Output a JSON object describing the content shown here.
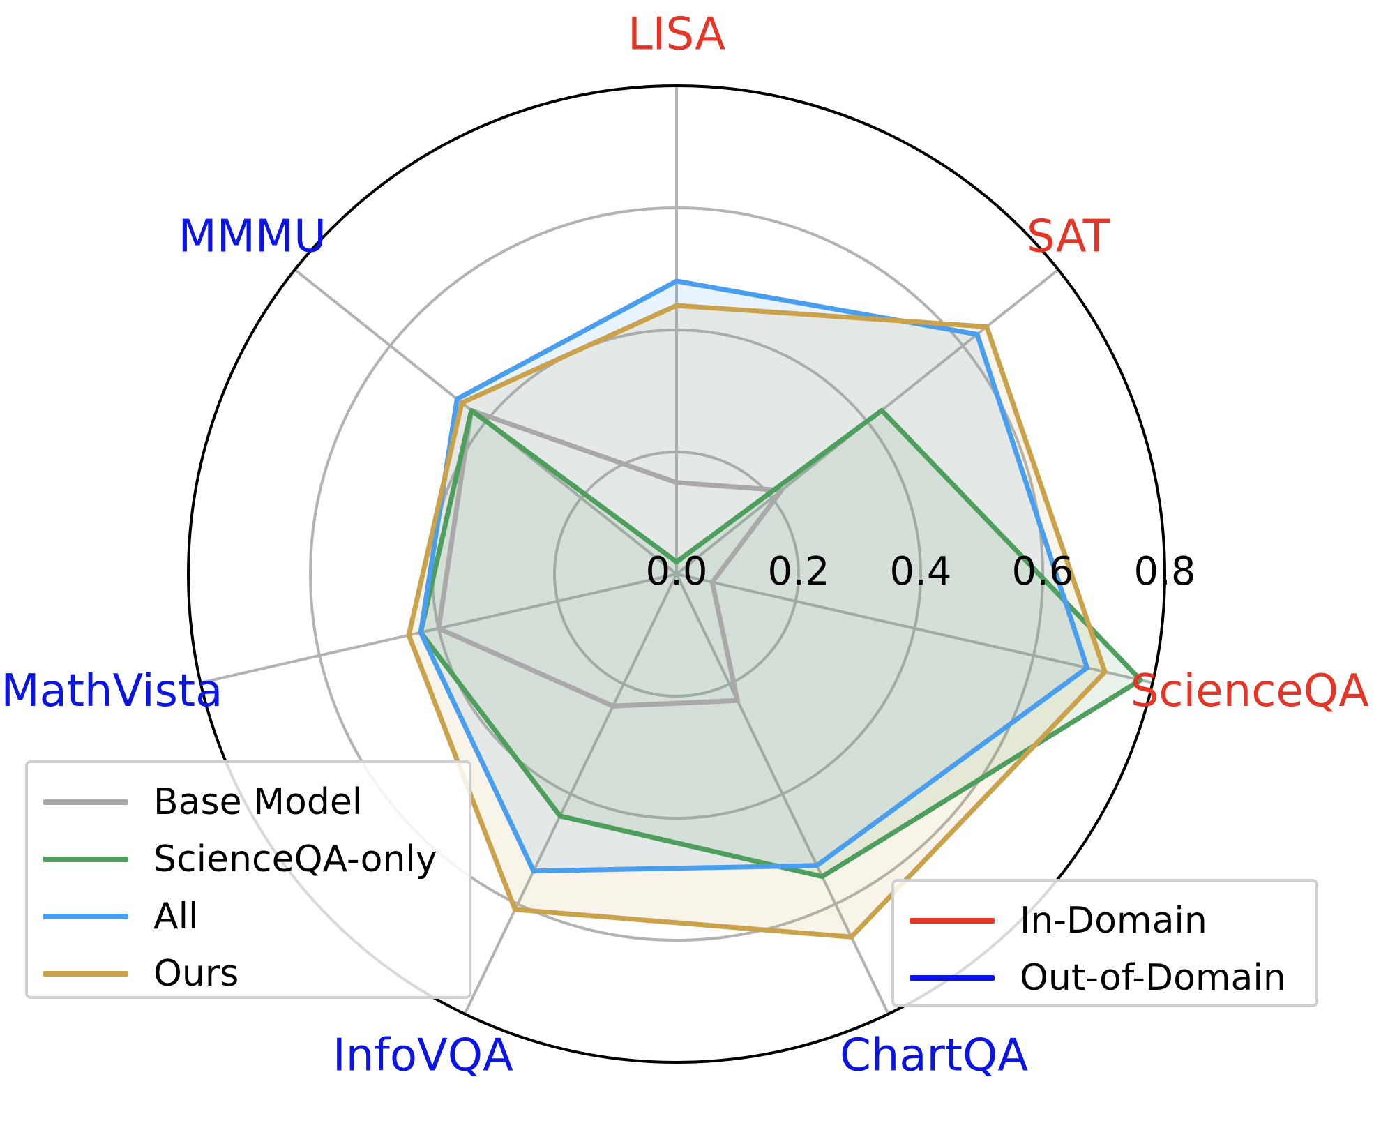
{
  "chart_data": {
    "type": "radar",
    "axes": [
      {
        "label": "LISA",
        "domain": "in"
      },
      {
        "label": "SAT",
        "domain": "in"
      },
      {
        "label": "ScienceQA",
        "domain": "in"
      },
      {
        "label": "ChartQA",
        "domain": "out"
      },
      {
        "label": "InfoVQA",
        "domain": "out"
      },
      {
        "label": "MathVista",
        "domain": "out"
      },
      {
        "label": "MMMU",
        "domain": "out"
      }
    ],
    "radial_ticks": [
      "0.0",
      "0.2",
      "0.4",
      "0.6",
      "0.8"
    ],
    "radial_range": [
      0,
      0.8
    ],
    "series": [
      {
        "name": "Base Model",
        "color": "#a9a9a9",
        "fill": false,
        "values": [
          0.15,
          0.22,
          0.06,
          0.23,
          0.24,
          0.4,
          0.43
        ]
      },
      {
        "name": "ScienceQA-only",
        "color": "#4e9e5e",
        "fill": true,
        "values": [
          0.02,
          0.43,
          0.78,
          0.55,
          0.44,
          0.43,
          0.43
        ]
      },
      {
        "name": "All",
        "color": "#4a9ef0",
        "fill": true,
        "values": [
          0.48,
          0.63,
          0.69,
          0.53,
          0.54,
          0.43,
          0.46
        ]
      },
      {
        "name": "Ours",
        "color": "#c9a24b",
        "fill": true,
        "values": [
          0.44,
          0.65,
          0.72,
          0.66,
          0.61,
          0.45,
          0.45
        ]
      }
    ],
    "domain_legend": [
      {
        "name": "In-Domain",
        "color": "#e53527"
      },
      {
        "name": "Out-of-Domain",
        "color": "#0a14e6"
      }
    ],
    "grid": true,
    "legend_placement": [
      "bottom-left",
      "bottom-right"
    ]
  }
}
